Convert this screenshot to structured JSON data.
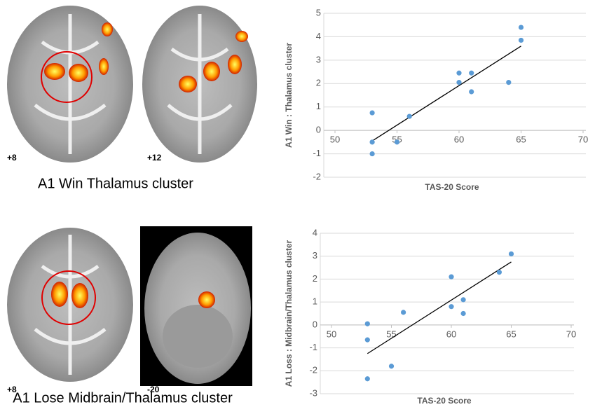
{
  "panels": [
    {
      "caption": "A1 Win Thalamus cluster",
      "slices": [
        "+8",
        "+12"
      ]
    },
    {
      "caption": "A1 Lose Midbrain/Thalamus cluster",
      "slices": [
        "+8",
        "-20"
      ]
    }
  ],
  "chart_data": [
    {
      "type": "scatter",
      "xlabel": "TAS-20 Score",
      "ylabel": "A1 Win : Thalamus cluster",
      "xlim": [
        50,
        70
      ],
      "xticks": [
        50,
        55,
        60,
        65,
        70
      ],
      "ylim": [
        -2,
        5
      ],
      "yticks": [
        -2,
        -1,
        0,
        1,
        2,
        3,
        4,
        5
      ],
      "grid": true,
      "series": [
        {
          "color": "#5b9bd5",
          "x": [
            53,
            53,
            53,
            55,
            56,
            60,
            60,
            61,
            61,
            64,
            65,
            65
          ],
          "y": [
            0.75,
            -0.5,
            -1,
            -0.5,
            0.6,
            2.45,
            2.05,
            2.45,
            1.65,
            2.05,
            4.4,
            3.85
          ]
        }
      ],
      "trendline": {
        "color": "#000000",
        "x": [
          53,
          65
        ],
        "y": [
          -0.45,
          3.6
        ]
      }
    },
    {
      "type": "scatter",
      "xlabel": "TAS-20 Score",
      "ylabel": "A1 Loss : Midbrain/Thalamus cluster",
      "xlim": [
        50,
        70
      ],
      "xticks": [
        50,
        55,
        60,
        65,
        70
      ],
      "ylim": [
        -3,
        4
      ],
      "yticks": [
        -3,
        -2,
        -1,
        0,
        1,
        2,
        3,
        4
      ],
      "grid": true,
      "series": [
        {
          "color": "#5b9bd5",
          "x": [
            53,
            53,
            53,
            55,
            56,
            60,
            60,
            61,
            61,
            64,
            65
          ],
          "y": [
            0.05,
            -0.65,
            -2.35,
            -1.8,
            0.55,
            2.1,
            0.8,
            1.1,
            0.5,
            2.3,
            3.1
          ]
        }
      ],
      "trendline": {
        "color": "#000000",
        "x": [
          53,
          65
        ],
        "y": [
          -1.25,
          2.75
        ]
      }
    }
  ]
}
